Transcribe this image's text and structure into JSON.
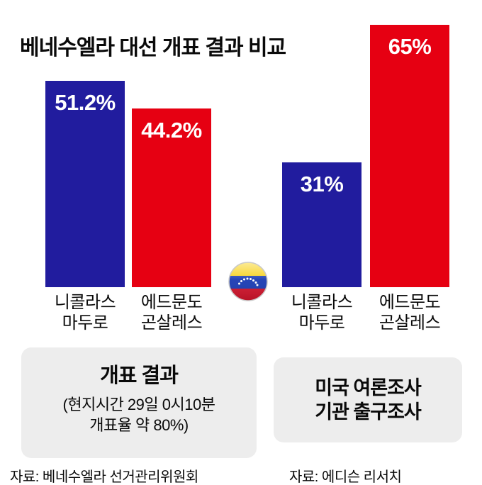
{
  "title": "베네수엘라 대선 개표 결과 비교",
  "chart_data": {
    "type": "bar",
    "title": "베네수엘라 대선 개표 결과 비교",
    "unit": "%",
    "ylim": [
      0,
      65
    ],
    "grid": false,
    "legend_position": "none",
    "categories": [
      "개표 결과",
      "미국 여론조사 기관 출구조사"
    ],
    "series": [
      {
        "name": "니콜라스 마두로",
        "name_lines": [
          "니콜라스",
          "마두로"
        ],
        "color": "#211c9e",
        "values": [
          51.2,
          31
        ],
        "labels": [
          "51.2%",
          "31%"
        ]
      },
      {
        "name": "에드문도 곤살레스",
        "name_lines": [
          "에드문도",
          "곤살레스"
        ],
        "color": "#e60012",
        "values": [
          44.2,
          65
        ],
        "labels": [
          "44.2%",
          "65%"
        ]
      }
    ],
    "group_boxes": [
      {
        "title": "개표 결과",
        "note_lines": [
          "(현지시간 29일 0시10분",
          "개표율 약 80%)"
        ],
        "source": "자료: 베네수엘라 선거관리위원회"
      },
      {
        "title_lines": [
          "미국 여론조사",
          "기관 출구조사"
        ],
        "source": "자료: 에디슨 리서치"
      }
    ],
    "center_icon": "venezuela-flag-icon",
    "colors": {
      "maduro_blue": "#211c9e",
      "gonzalez_red": "#e60012",
      "box_background": "#ededed"
    }
  }
}
